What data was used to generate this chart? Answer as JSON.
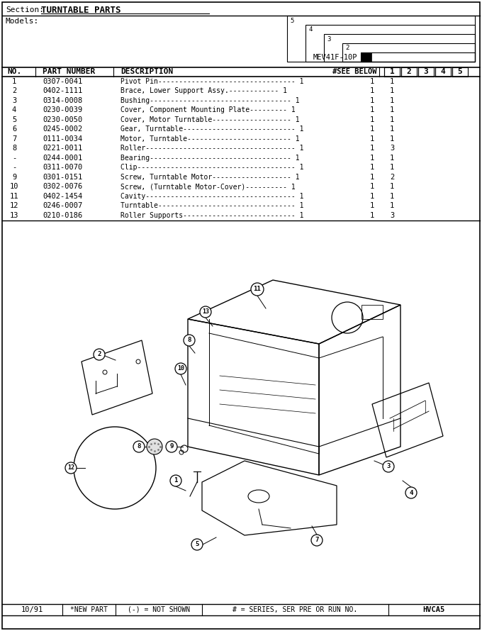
{
  "title_section": "Section:",
  "title_text": "TURNTABLE PARTS",
  "models_label": "Models:",
  "model_name": "MEV41F-10P",
  "series_numbers": [
    "5",
    "4",
    "3",
    "2",
    "1"
  ],
  "parts": [
    [
      "1",
      "0307-0041",
      "Pivot Pin--------------------------------- 1",
      "1",
      ""
    ],
    [
      "2",
      "0402-1111",
      "Brace, Lower Support Assy.------------ 1",
      "1",
      ""
    ],
    [
      "3",
      "0314-0008",
      "Bushing---------------------------------- 1",
      "1",
      ""
    ],
    [
      "4",
      "0230-0039",
      "Cover, Component Mounting Plate--------- 1",
      "1",
      ""
    ],
    [
      "5",
      "0230-0050",
      "Cover, Motor Turntable------------------- 1",
      "1",
      ""
    ],
    [
      "6",
      "0245-0002",
      "Gear, Turntable--------------------------- 1",
      "1",
      ""
    ],
    [
      "7",
      "0111-0034",
      "Motor, Turntable------------------------- 1",
      "1",
      ""
    ],
    [
      "8",
      "0221-0011",
      "Roller------------------------------------ 1",
      "3",
      ""
    ],
    [
      "-",
      "0244-0001",
      "Bearing---------------------------------- 1",
      "1",
      ""
    ],
    [
      "-",
      "0311-0070",
      "Clip-------------------------------------- 1",
      "1",
      ""
    ],
    [
      "9",
      "0301-0151",
      "Screw, Turntable Motor------------------- 1",
      "2",
      ""
    ],
    [
      "10",
      "0302-0076",
      "Screw, (Turntable Motor-Cover)---------- 1",
      "1",
      ""
    ],
    [
      "11",
      "0402-1454",
      "Cavity------------------------------------ 1",
      "1",
      ""
    ],
    [
      "12",
      "0246-0007",
      "Turntable--------------------------------- 1",
      "1",
      ""
    ],
    [
      "13",
      "0210-0186",
      "Roller Supports--------------------------- 1",
      "3",
      ""
    ]
  ],
  "footer_date": "10/91",
  "footer_new_part": "*NEW PART",
  "footer_not_shown": "(-) = NOT SHOWN",
  "footer_series": "# = SERIES, SER PRE OR RUN NO.",
  "footer_code": "HVCA5",
  "bg_color": "#ffffff",
  "line_color": "#000000",
  "text_color": "#000000"
}
